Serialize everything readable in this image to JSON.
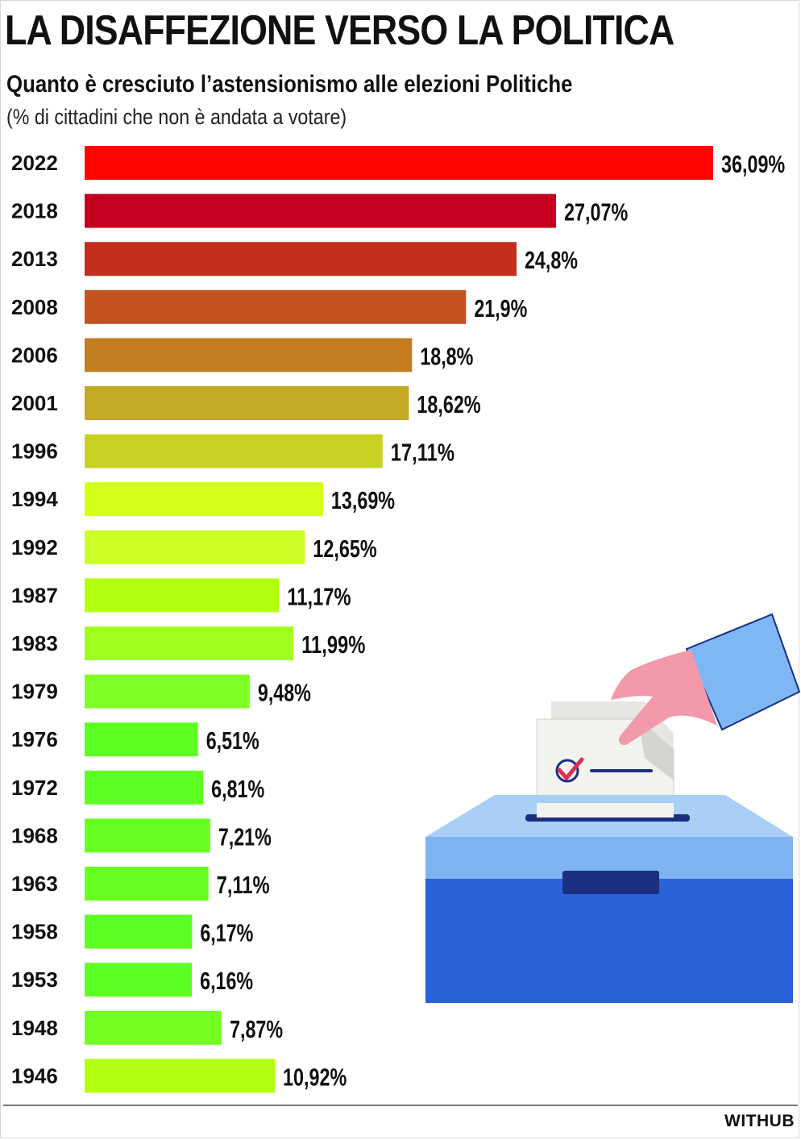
{
  "chart_data": {
    "type": "bar",
    "orientation": "horizontal",
    "title": "LA DISAFFEZIONE VERSO LA POLITICA",
    "subtitle": "Quanto è cresciuto l’astensionismo alle elezioni Politiche",
    "note": "(% di cittadini che non è andata a votare)",
    "categories": [
      "2022",
      "2018",
      "2013",
      "2008",
      "2006",
      "2001",
      "1996",
      "1994",
      "1992",
      "1987",
      "1983",
      "1979",
      "1976",
      "1972",
      "1968",
      "1963",
      "1958",
      "1953",
      "1948",
      "1946"
    ],
    "values": [
      36.09,
      27.07,
      24.8,
      21.9,
      18.8,
      18.62,
      17.11,
      13.69,
      12.65,
      11.17,
      11.99,
      9.48,
      6.51,
      6.81,
      7.21,
      7.11,
      6.17,
      6.16,
      7.87,
      10.92
    ],
    "value_labels": [
      "36,09%",
      "27,07%",
      "24,8%",
      "21,9%",
      "18,8%",
      "18,62%",
      "17,11%",
      "13,69%",
      "12,65%",
      "11,17%",
      "11,99%",
      "9,48%",
      "6,51%",
      "6,81%",
      "7,21%",
      "7,11%",
      "6,17%",
      "6,16%",
      "7,87%",
      "10,92%"
    ],
    "colors": [
      "#ff0500",
      "#c4001e",
      "#c42e1e",
      "#c4521e",
      "#c47d20",
      "#c4aa25",
      "#c7d322",
      "#d4ff18",
      "#ccff26",
      "#b3ff10",
      "#a1ff1e",
      "#80ff26",
      "#5cff1f",
      "#5eff23",
      "#66ff20",
      "#67ff20",
      "#5eff22",
      "#5eff23",
      "#73ff22",
      "#b3ff10"
    ],
    "xlim": [
      0,
      36.09
    ],
    "grid": false,
    "legend": "none"
  },
  "footer": {
    "credit": "WITHUB"
  },
  "illustration": {
    "name": "ballot-box-illustration",
    "colors": {
      "box_top": "#a9cff7",
      "box_band": "#7fb3f2",
      "box_front": "#2a62d9",
      "slot": "#1a2f80",
      "sleeve": "#7fb6f5",
      "skin": "#f29aaa",
      "paper": "#f2f2ee",
      "check": "#e0304e",
      "line": "#1a2f80"
    }
  }
}
